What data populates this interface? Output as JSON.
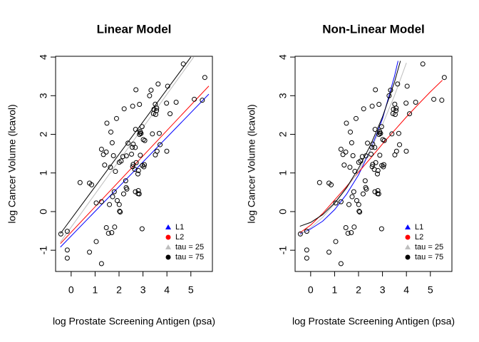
{
  "chart_data": [
    {
      "type": "scatter",
      "title": "Linear Model",
      "x_label": "log Prostate Screening Antigen (psa)",
      "y_label": "log Cancer Volume (lcavol)",
      "xlim": [
        -0.65,
        5.9
      ],
      "ylim": [
        -1.55,
        4.02
      ],
      "xticks": [
        0,
        1,
        2,
        3,
        4,
        5
      ],
      "yticks": [
        -1,
        0,
        1,
        2,
        3,
        4
      ],
      "legend": "bottomright",
      "color": "#000000",
      "x": [
        -0.4308,
        -0.1625,
        -0.1625,
        -0.1625,
        0.3716,
        0.7655,
        0.7655,
        0.8544,
        1.0473,
        1.0473,
        1.2669,
        1.2669,
        1.2669,
        1.3481,
        1.3987,
        1.4656,
        1.4702,
        1.4929,
        1.5581,
        1.5994,
        1.639,
        1.6582,
        1.6956,
        1.7138,
        1.7317,
        1.7664,
        1.8001,
        1.8165,
        1.8485,
        1.8946,
        1.9242,
        2.0082,
        2.0082,
        2.0215,
        2.0477,
        2.0857,
        2.1576,
        2.1917,
        2.2138,
        2.2773,
        2.2976,
        2.3076,
        2.3273,
        2.3738,
        2.5217,
        2.5533,
        2.5688,
        2.5688,
        2.5915,
        2.5915,
        2.6568,
        2.6776,
        2.6844,
        2.6912,
        2.7047,
        2.718,
        2.7881,
        2.7942,
        2.8064,
        2.8124,
        2.842,
        2.8536,
        2.8536,
        2.882,
        2.882,
        2.8876,
        2.9205,
        2.9627,
        2.9627,
        2.973,
        3.0131,
        3.0374,
        3.0564,
        3.075,
        3.2753,
        3.3375,
        3.3928,
        3.4356,
        3.4579,
        3.513,
        3.516,
        3.5308,
        3.5653,
        3.5709,
        3.5877,
        3.631,
        3.6801,
        3.7124,
        3.9843,
        3.9936,
        4.0298,
        4.1296,
        4.3851,
        4.6844,
        5.1431,
        5.4775,
        5.5829
      ],
      "values": [
        -0.5798,
        -0.9943,
        -0.5108,
        -1.204,
        0.7514,
        -1.0498,
        0.7372,
        0.6931,
        -0.7765,
        0.2231,
        0.2546,
        -1.3471,
        1.6134,
        1.477,
        1.2056,
        1.5412,
        -0.4155,
        2.2885,
        -0.5621,
        0.1823,
        1.1474,
        2.0592,
        -0.5447,
        1.7817,
        0.3853,
        1.4469,
        0.5128,
        -0.4005,
        1.0403,
        2.4096,
        0.2852,
        0.1823,
        1.2754,
        0.01,
        -0.0101,
        1.3083,
        1.4231,
        0.4574,
        2.6609,
        0.7975,
        0.6206,
        1.4422,
        0.5822,
        1.7716,
        1.4861,
        1.6639,
        2.7279,
        1.1632,
        1.7457,
        1.2208,
        1.0919,
        1.6601,
        0.5128,
        2.127,
        3.1536,
        1.2669,
        0.9746,
        0.4637,
        0.5423,
        1.0613,
        0.4574,
        1.9974,
        2.7757,
        2.0347,
        2.0732,
        1.4586,
        2.0229,
        2.1983,
        -0.4463,
        1.1939,
        1.8641,
        1.16,
        1.2149,
        1.8389,
        2.9992,
        3.1411,
        2.0109,
        2.5377,
        2.6483,
        2.7794,
        1.4679,
        2.5137,
        2.613,
        2.6779,
        1.5623,
        3.3028,
        2.0242,
        1.7317,
        2.8076,
        1.5623,
        3.2465,
        2.5329,
        2.8302,
        3.821,
        2.9074,
        2.8825,
        3.472
      ],
      "series": [
        {
          "name": "L1",
          "color": "#0000ff",
          "marker": "triangle",
          "x": [
            -0.45,
            5.75
          ],
          "values": [
            -0.92,
            3.04
          ]
        },
        {
          "name": "L2",
          "color": "#ff0000",
          "marker": "circle",
          "x": [
            -0.45,
            5.75
          ],
          "values": [
            -0.83,
            3.25
          ]
        },
        {
          "name": "tau = 25",
          "color": "#bebebe",
          "marker": "triangle",
          "x": [
            -0.45,
            5.12
          ],
          "values": [
            -0.79,
            4.0
          ]
        },
        {
          "name": "tau = 75",
          "color": "#000000",
          "marker": "circle",
          "x": [
            -0.45,
            5.0
          ],
          "values": [
            -0.57,
            4.0
          ]
        }
      ]
    },
    {
      "type": "scatter",
      "title": "Non-Linear Model",
      "x_label": "log Prostate Screening Antigen (psa)",
      "y_label": "log Cancer Volume (lcavol)",
      "xlim": [
        -0.65,
        5.9
      ],
      "ylim": [
        -1.55,
        4.02
      ],
      "xticks": [
        0,
        1,
        2,
        3,
        4,
        5
      ],
      "yticks": [
        -1,
        0,
        1,
        2,
        3,
        4
      ],
      "legend": "bottomright",
      "color": "#000000",
      "x": [
        -0.4308,
        -0.1625,
        -0.1625,
        -0.1625,
        0.3716,
        0.7655,
        0.7655,
        0.8544,
        1.0473,
        1.0473,
        1.2669,
        1.2669,
        1.2669,
        1.3481,
        1.3987,
        1.4656,
        1.4702,
        1.4929,
        1.5581,
        1.5994,
        1.639,
        1.6582,
        1.6956,
        1.7138,
        1.7317,
        1.7664,
        1.8001,
        1.8165,
        1.8485,
        1.8946,
        1.9242,
        2.0082,
        2.0082,
        2.0215,
        2.0477,
        2.0857,
        2.1576,
        2.1917,
        2.2138,
        2.2773,
        2.2976,
        2.3076,
        2.3273,
        2.3738,
        2.5217,
        2.5533,
        2.5688,
        2.5688,
        2.5915,
        2.5915,
        2.6568,
        2.6776,
        2.6844,
        2.6912,
        2.7047,
        2.718,
        2.7881,
        2.7942,
        2.8064,
        2.8124,
        2.842,
        2.8536,
        2.8536,
        2.882,
        2.882,
        2.8876,
        2.9205,
        2.9627,
        2.9627,
        2.973,
        3.0131,
        3.0374,
        3.0564,
        3.075,
        3.2753,
        3.3375,
        3.3928,
        3.4356,
        3.4579,
        3.513,
        3.516,
        3.5308,
        3.5653,
        3.5709,
        3.5877,
        3.631,
        3.6801,
        3.7124,
        3.9843,
        3.9936,
        4.0298,
        4.1296,
        4.3851,
        4.6844,
        5.1431,
        5.4775,
        5.5829
      ],
      "values": [
        -0.5798,
        -0.9943,
        -0.5108,
        -1.204,
        0.7514,
        -1.0498,
        0.7372,
        0.6931,
        -0.7765,
        0.2231,
        0.2546,
        -1.3471,
        1.6134,
        1.477,
        1.2056,
        1.5412,
        -0.4155,
        2.2885,
        -0.5621,
        0.1823,
        1.1474,
        2.0592,
        -0.5447,
        1.7817,
        0.3853,
        1.4469,
        0.5128,
        -0.4005,
        1.0403,
        2.4096,
        0.2852,
        0.1823,
        1.2754,
        0.01,
        -0.0101,
        1.3083,
        1.4231,
        0.4574,
        2.6609,
        0.7975,
        0.6206,
        1.4422,
        0.5822,
        1.7716,
        1.4861,
        1.6639,
        2.7279,
        1.1632,
        1.7457,
        1.2208,
        1.0919,
        1.6601,
        0.5128,
        2.127,
        3.1536,
        1.2669,
        0.9746,
        0.4637,
        0.5423,
        1.0613,
        0.4574,
        1.9974,
        2.7757,
        2.0347,
        2.0732,
        1.4586,
        2.0229,
        2.1983,
        -0.4463,
        1.1939,
        1.8641,
        1.16,
        1.2149,
        1.8389,
        2.9992,
        3.1411,
        2.0109,
        2.5377,
        2.6483,
        2.7794,
        1.4679,
        2.5137,
        2.613,
        2.6779,
        1.5623,
        3.3028,
        2.0242,
        1.7317,
        2.8076,
        1.5623,
        3.2465,
        2.5329,
        2.8302,
        3.821,
        2.9074,
        2.8825,
        3.472
      ],
      "series": [
        {
          "name": "L1",
          "color": "#0000ff",
          "marker": "triangle",
          "x": [
            -0.45,
            0,
            0.5,
            1,
            1.5,
            2,
            2.5,
            3,
            3.5,
            3.65
          ],
          "values": [
            -0.58,
            -0.45,
            -0.25,
            0.05,
            0.45,
            0.95,
            1.6,
            2.4,
            3.5,
            3.9
          ]
        },
        {
          "name": "L2",
          "color": "#ff0000",
          "marker": "circle",
          "x": [
            -0.45,
            0,
            0.5,
            1,
            1.5,
            2,
            2.5,
            3,
            3.5,
            4,
            4.5,
            5,
            5.5
          ],
          "values": [
            -0.55,
            -0.35,
            -0.05,
            0.3,
            0.65,
            1.02,
            1.38,
            1.75,
            2.1,
            2.45,
            2.78,
            3.1,
            3.4
          ]
        },
        {
          "name": "tau = 25",
          "color": "#bebebe",
          "marker": "triangle",
          "x": [
            -0.45,
            0,
            0.5,
            1,
            1.5,
            2,
            2.5,
            3,
            3.5,
            4
          ],
          "values": [
            -0.6,
            -0.42,
            -0.15,
            0.2,
            0.6,
            1.05,
            1.6,
            2.25,
            3.0,
            3.85
          ]
        },
        {
          "name": "tau = 75",
          "color": "#000000",
          "marker": "circle",
          "x": [
            -0.45,
            0,
            0.5,
            1,
            1.5,
            2,
            2.5,
            3,
            3.5,
            3.75
          ],
          "values": [
            -0.38,
            -0.28,
            -0.08,
            0.22,
            0.62,
            1.12,
            1.72,
            2.45,
            3.35,
            3.9
          ]
        }
      ]
    }
  ]
}
